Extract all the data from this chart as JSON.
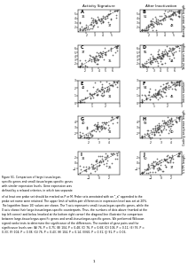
{
  "col_headers": [
    "Activity Signature",
    "After Inactivation"
  ],
  "row_labels": [
    "Average intron length",
    "Total intron length",
    "Intron number",
    "Coding sequence length",
    "5'UTR length"
  ],
  "panels": [
    "A",
    "B",
    "C",
    "D",
    "E",
    "F",
    "G",
    "H",
    "I",
    "J"
  ],
  "panel_stats": [
    {
      "n": 76,
      "p": "0.75",
      "above": 36,
      "below": 37
    },
    {
      "n": 104,
      "p": "0.48",
      "above": 51,
      "below": 48
    },
    {
      "n": 76,
      "p": "0.68",
      "above": 37,
      "below": 35
    },
    {
      "n": 104,
      "p": "0.11",
      "above": 55,
      "below": 44
    },
    {
      "n": 76,
      "p": "0.33",
      "above": 42,
      "below": 31
    },
    {
      "n": 104,
      "p": "0.38",
      "above": 54,
      "below": 45
    },
    {
      "n": 76,
      "p": "0.43",
      "above": 40,
      "below": 32
    },
    {
      "n": 104,
      "p": "0.14",
      "above": 58,
      "below": 40
    },
    {
      "n": 60,
      "p": "0.31",
      "above": 32,
      "below": 25
    },
    {
      "n": 91,
      "p": "0.06",
      "above": 50,
      "below": 37
    }
  ],
  "axis_ranges": [
    [
      1,
      6
    ],
    [
      1,
      6
    ],
    [
      1,
      7
    ],
    [
      1,
      7
    ],
    [
      0,
      3
    ],
    [
      0,
      3
    ],
    [
      1,
      5
    ],
    [
      1,
      5
    ],
    [
      -4,
      4
    ],
    [
      -4,
      4
    ]
  ],
  "axis_ticks": [
    [
      [
        2,
        3,
        4,
        5
      ],
      [
        2,
        3,
        4,
        5
      ]
    ],
    [
      [
        2,
        3,
        4,
        5
      ],
      [
        2,
        3,
        4,
        5
      ]
    ],
    [
      [
        2,
        3,
        4,
        5,
        6
      ],
      [
        2,
        3,
        4,
        5,
        6
      ]
    ],
    [
      [
        2,
        3,
        4,
        5,
        6
      ],
      [
        2,
        3,
        4,
        5,
        6
      ]
    ],
    [
      [
        0,
        1,
        2,
        3
      ],
      [
        0,
        1,
        2,
        3
      ]
    ],
    [
      [
        0,
        1,
        2,
        3
      ],
      [
        0,
        1,
        2,
        3
      ]
    ],
    [
      [
        2,
        3,
        4
      ],
      [
        2,
        3,
        4
      ]
    ],
    [
      [
        2,
        3,
        4
      ],
      [
        2,
        3,
        4
      ]
    ],
    [
      [
        -2,
        0,
        2
      ],
      [
        -2,
        0,
        2
      ]
    ],
    [
      [
        -2,
        0,
        2
      ],
      [
        -2,
        0,
        2
      ]
    ]
  ],
  "dot_color": "#444444",
  "dot_size": 1.5,
  "background_color": "#ffffff",
  "seeds": [
    42,
    123,
    7,
    88,
    55,
    66,
    77,
    99,
    11,
    33
  ],
  "caption_lines": [
    "Figure S1. Comparison of large-tissue/organ-",
    "specific genes and small-tissue/organ-specific genes",
    "with similar expression levels. Gene expression was",
    "defined by a relaxed criterion, in which two separate",
    "of at least one probe set should be marked as P or M. Probe sets annotated with an \"_a\" appended to the",
    "probe set name were retained. The upper limit of within-pair differences in expression level was set at 20%.",
    "The logarithm (base 10) values are shown. The Y axis represents small-tissue/organ-specific genes, while the",
    "X axis shows their large-tissue/organ-specific counterparts. Thus, the numbers of dots above (marked at the",
    "top left corner) and below (marked at the bottom right corner) the diagonal line illustrate the comparison",
    "between large-tissue/organ-specific genes and small-tissue/organ-specific genes. We performed Wilcoxon",
    "signed ranks tests to determine the significance of the differences. The number of gene pairs and the",
    "significance levels are: (A) 76, P = 0.75; (B) 104, P = 0.48; (C) 76, P = 0.68; (D) 104, P = 0.11; (E) 76, P =",
    "0.33; (F) 104, P = 0.38; (G) 76, P = 0.43; (H) 104, P = 0.14; (I)(60, P = 0.31; (J) 91, P = 0.06."
  ]
}
